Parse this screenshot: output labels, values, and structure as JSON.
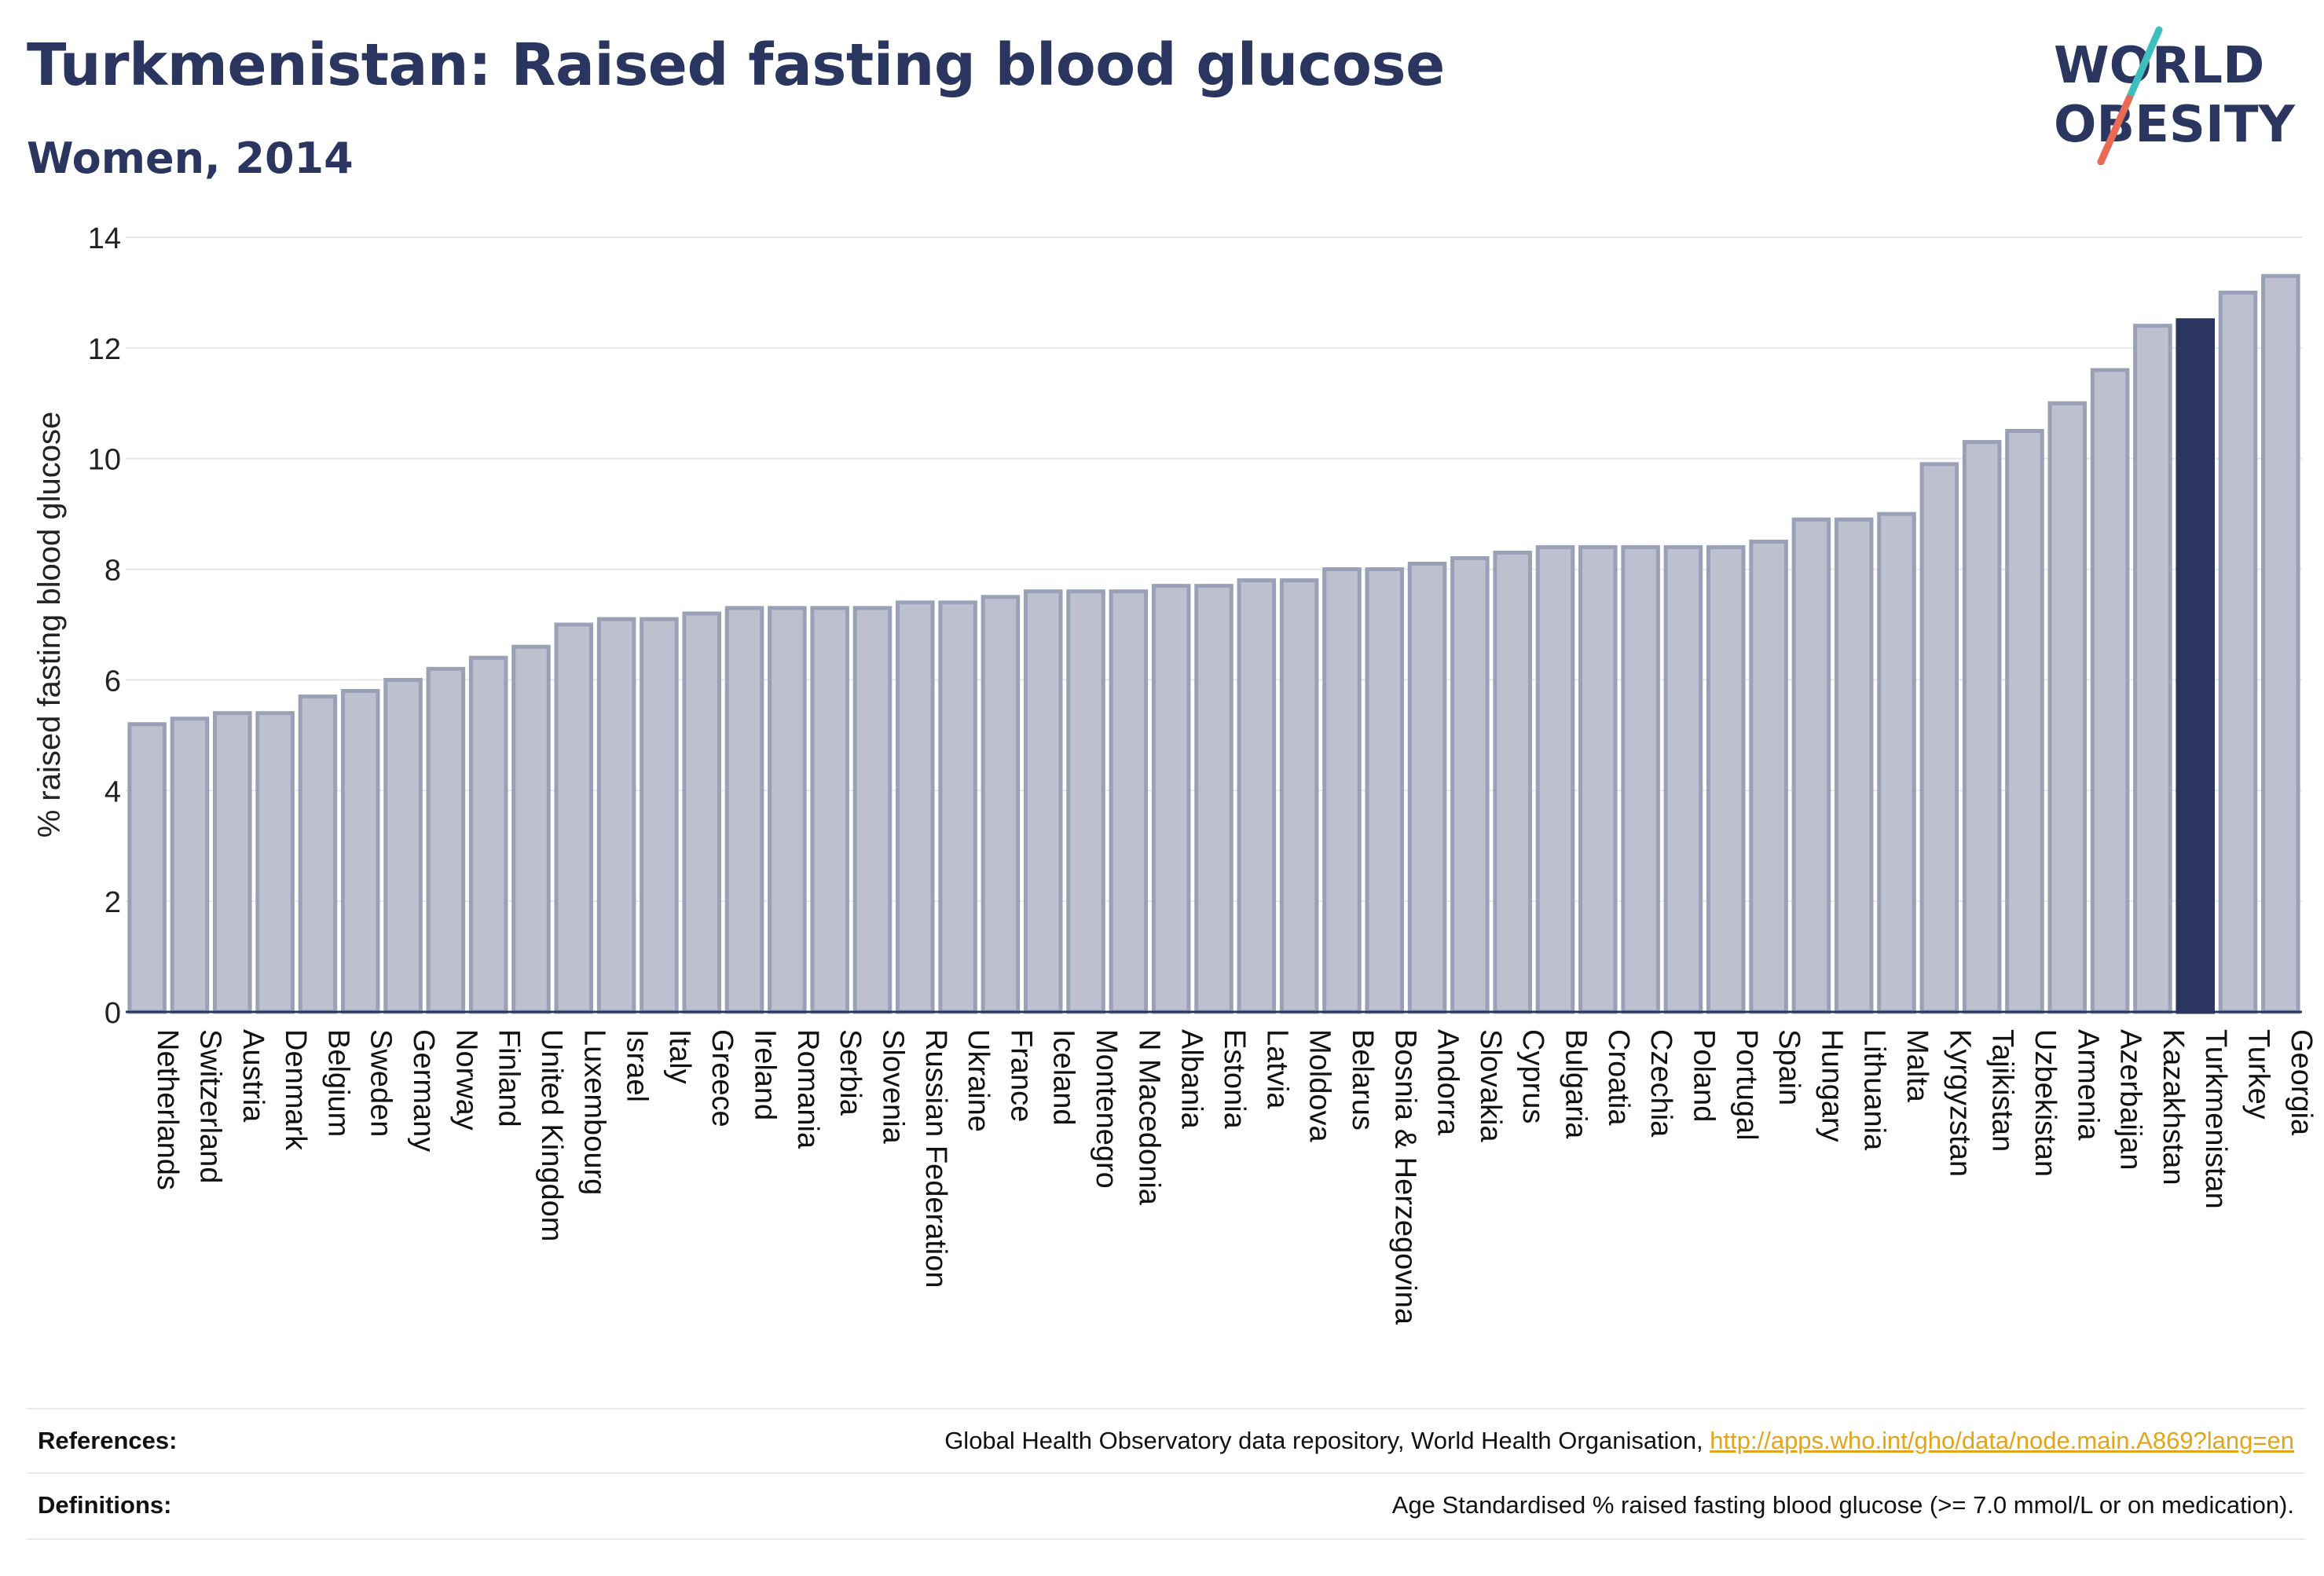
{
  "header": {
    "title": "Turkmenistan: Raised fasting blood glucose",
    "subtitle": "Women, 2014"
  },
  "logo": {
    "line1": "WORLD",
    "line2": "OBESITY",
    "slash_colors": [
      "#3dbfbe",
      "#e96b55"
    ]
  },
  "colors": {
    "bar_default": "#bcc0cf",
    "bar_default_border": "#9aa0b6",
    "bar_highlight": "#2a3560",
    "text": "#2a3560",
    "gridline": "#e6e8ee"
  },
  "chart_data": {
    "type": "bar",
    "ylabel": "% raised fasting blood glucose",
    "xlabel": "",
    "ylim": [
      0,
      14
    ],
    "yticks": [
      0,
      2,
      4,
      6,
      8,
      10,
      12,
      14
    ],
    "grid": "horizontal",
    "highlight": "Turkmenistan",
    "categories": [
      "Netherlands",
      "Switzerland",
      "Austria",
      "Denmark",
      "Belgium",
      "Sweden",
      "Germany",
      "Norway",
      "Finland",
      "United Kingdom",
      "Luxembourg",
      "Israel",
      "Italy",
      "Greece",
      "Ireland",
      "Romania",
      "Serbia",
      "Slovenia",
      "Russian Federation",
      "Ukraine",
      "France",
      "Iceland",
      "Montenegro",
      "N Macedonia",
      "Albania",
      "Estonia",
      "Latvia",
      "Moldova",
      "Belarus",
      "Bosnia & Herzegovina",
      "Andorra",
      "Slovakia",
      "Cyprus",
      "Bulgaria",
      "Croatia",
      "Czechia",
      "Poland",
      "Portugal",
      "Spain",
      "Hungary",
      "Lithuania",
      "Malta",
      "Kyrgyzstan",
      "Tajikistan",
      "Uzbekistan",
      "Armenia",
      "Azerbaijan",
      "Kazakhstan",
      "Turkmenistan",
      "Turkey",
      "Georgia"
    ],
    "values": [
      5.2,
      5.3,
      5.4,
      5.4,
      5.7,
      5.8,
      6.0,
      6.2,
      6.4,
      6.6,
      7.0,
      7.1,
      7.1,
      7.2,
      7.3,
      7.3,
      7.3,
      7.3,
      7.4,
      7.4,
      7.5,
      7.6,
      7.6,
      7.6,
      7.7,
      7.7,
      7.8,
      7.8,
      8.0,
      8.0,
      8.1,
      8.2,
      8.3,
      8.4,
      8.4,
      8.4,
      8.4,
      8.4,
      8.5,
      8.9,
      8.9,
      9.0,
      9.9,
      10.3,
      10.5,
      11.0,
      11.6,
      12.4,
      12.5,
      13.0,
      13.3
    ]
  },
  "footer": {
    "references_label": "References:",
    "references_text": "Global Health Observatory data repository, World Health Organisation, ",
    "references_link": "http://apps.who.int/gho/data/node.main.A869?lang=en",
    "definitions_label": "Definitions:",
    "definitions_text": "Age Standardised % raised fasting blood glucose (>= 7.0 mmol/L or on medication)."
  }
}
